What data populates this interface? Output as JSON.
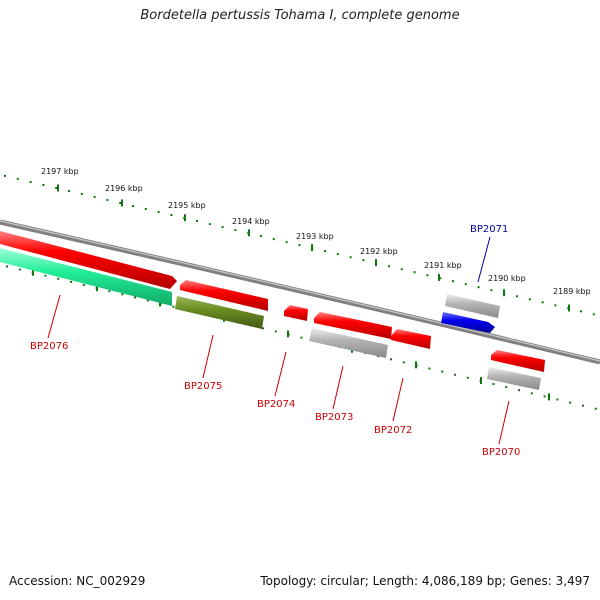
{
  "title": "Bordetella pertussis Tohama I, complete genome",
  "footer": {
    "accession": "Accession: NC_002929",
    "summary": "Topology: circular; Length: 4,086,189 bp; Genes: 3,497"
  },
  "kbp_labels": [
    "2197 kbp",
    "2196 kbp",
    "2195 kbp",
    "2194 kbp",
    "2193 kbp",
    "2192 kbp",
    "2191 kbp",
    "2190 kbp",
    "2189 kbp"
  ],
  "genes": [
    {
      "id": "BP2076",
      "color": "#cc0000"
    },
    {
      "id": "BP2075",
      "color": "#cc0000"
    },
    {
      "id": "BP2074",
      "color": "#cc0000"
    },
    {
      "id": "BP2073",
      "color": "#cc0000"
    },
    {
      "id": "BP2072",
      "color": "#cc0000"
    },
    {
      "id": "BP2071",
      "color": "#000099"
    },
    {
      "id": "BP2070",
      "color": "#cc0000"
    }
  ],
  "colors": {
    "cds": "#ff0000",
    "rna_green": "#22ee99",
    "olive": "#6b8e23",
    "grey": "#b0b0b0",
    "blue": "#0000ee",
    "tick": "#117711",
    "backbone": "#888888"
  }
}
